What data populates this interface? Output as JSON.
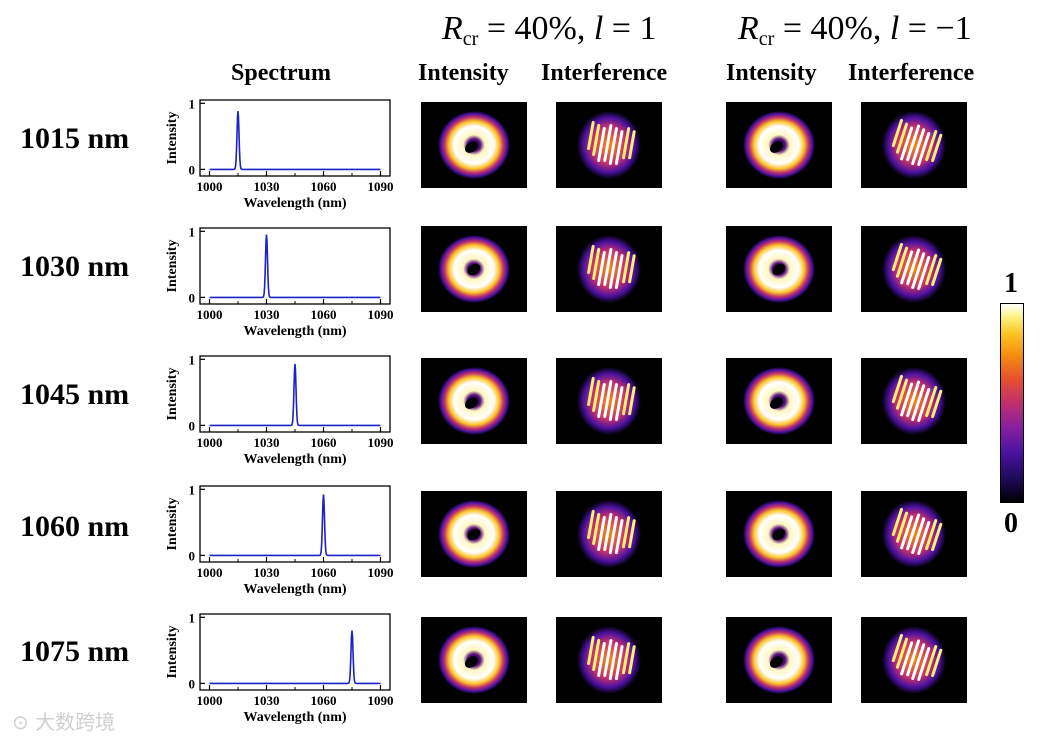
{
  "header": {
    "group1": {
      "label_R": "R",
      "label_sub": "cr",
      "label_eq": " = 40%, ",
      "label_l": "l",
      "label_val": " = 1"
    },
    "group2": {
      "label_R": "R",
      "label_sub": "cr",
      "label_eq": " = 40%,  ",
      "label_l": "l",
      "label_val": " = −1"
    },
    "columns": {
      "spectrum": "Spectrum",
      "intensity1": "Intensity",
      "interference1": "Interference",
      "intensity2": "Intensity",
      "interference2": "Interference"
    }
  },
  "rows": [
    {
      "label": "1015 nm"
    },
    {
      "label": "1030 nm"
    },
    {
      "label": "1045 nm"
    },
    {
      "label": "1060 nm"
    },
    {
      "label": "1075 nm"
    }
  ],
  "colorbar": {
    "max_label": "1",
    "min_label": "0",
    "colors": [
      "#000004",
      "#1e0a5a",
      "#4b12a0",
      "#8a1fa0",
      "#c0306e",
      "#e5502e",
      "#f58c10",
      "#fcc425",
      "#fdf07a",
      "#ffffff"
    ]
  },
  "watermark": "大数跨境",
  "chart_data": {
    "type": "line",
    "xlabel": "Wavelength (nm)",
    "ylabel": "Intensity",
    "xlim": [
      995,
      1095
    ],
    "ylim": [
      -0.1,
      1.05
    ],
    "xticks": [
      1000,
      1030,
      1060,
      1090
    ],
    "yticks": [
      0,
      1
    ],
    "line_color": "#1a22c8",
    "series": [
      {
        "name": "1015 nm",
        "x": [
          1000,
          1013,
          1015,
          1017,
          1090
        ],
        "peak_center": 1015,
        "peak_value": 0.88
      },
      {
        "name": "1030 nm",
        "x": [
          1000,
          1028,
          1030,
          1032,
          1090
        ],
        "peak_center": 1030,
        "peak_value": 0.95
      },
      {
        "name": "1045 nm",
        "x": [
          1000,
          1043,
          1045,
          1047,
          1090
        ],
        "peak_center": 1045,
        "peak_value": 0.93
      },
      {
        "name": "1060 nm",
        "x": [
          1000,
          1058,
          1060,
          1062,
          1090
        ],
        "peak_center": 1060,
        "peak_value": 0.92
      },
      {
        "name": "1075 nm",
        "x": [
          1000,
          1073,
          1075,
          1077,
          1090
        ],
        "peak_center": 1075,
        "peak_value": 0.8
      }
    ]
  }
}
